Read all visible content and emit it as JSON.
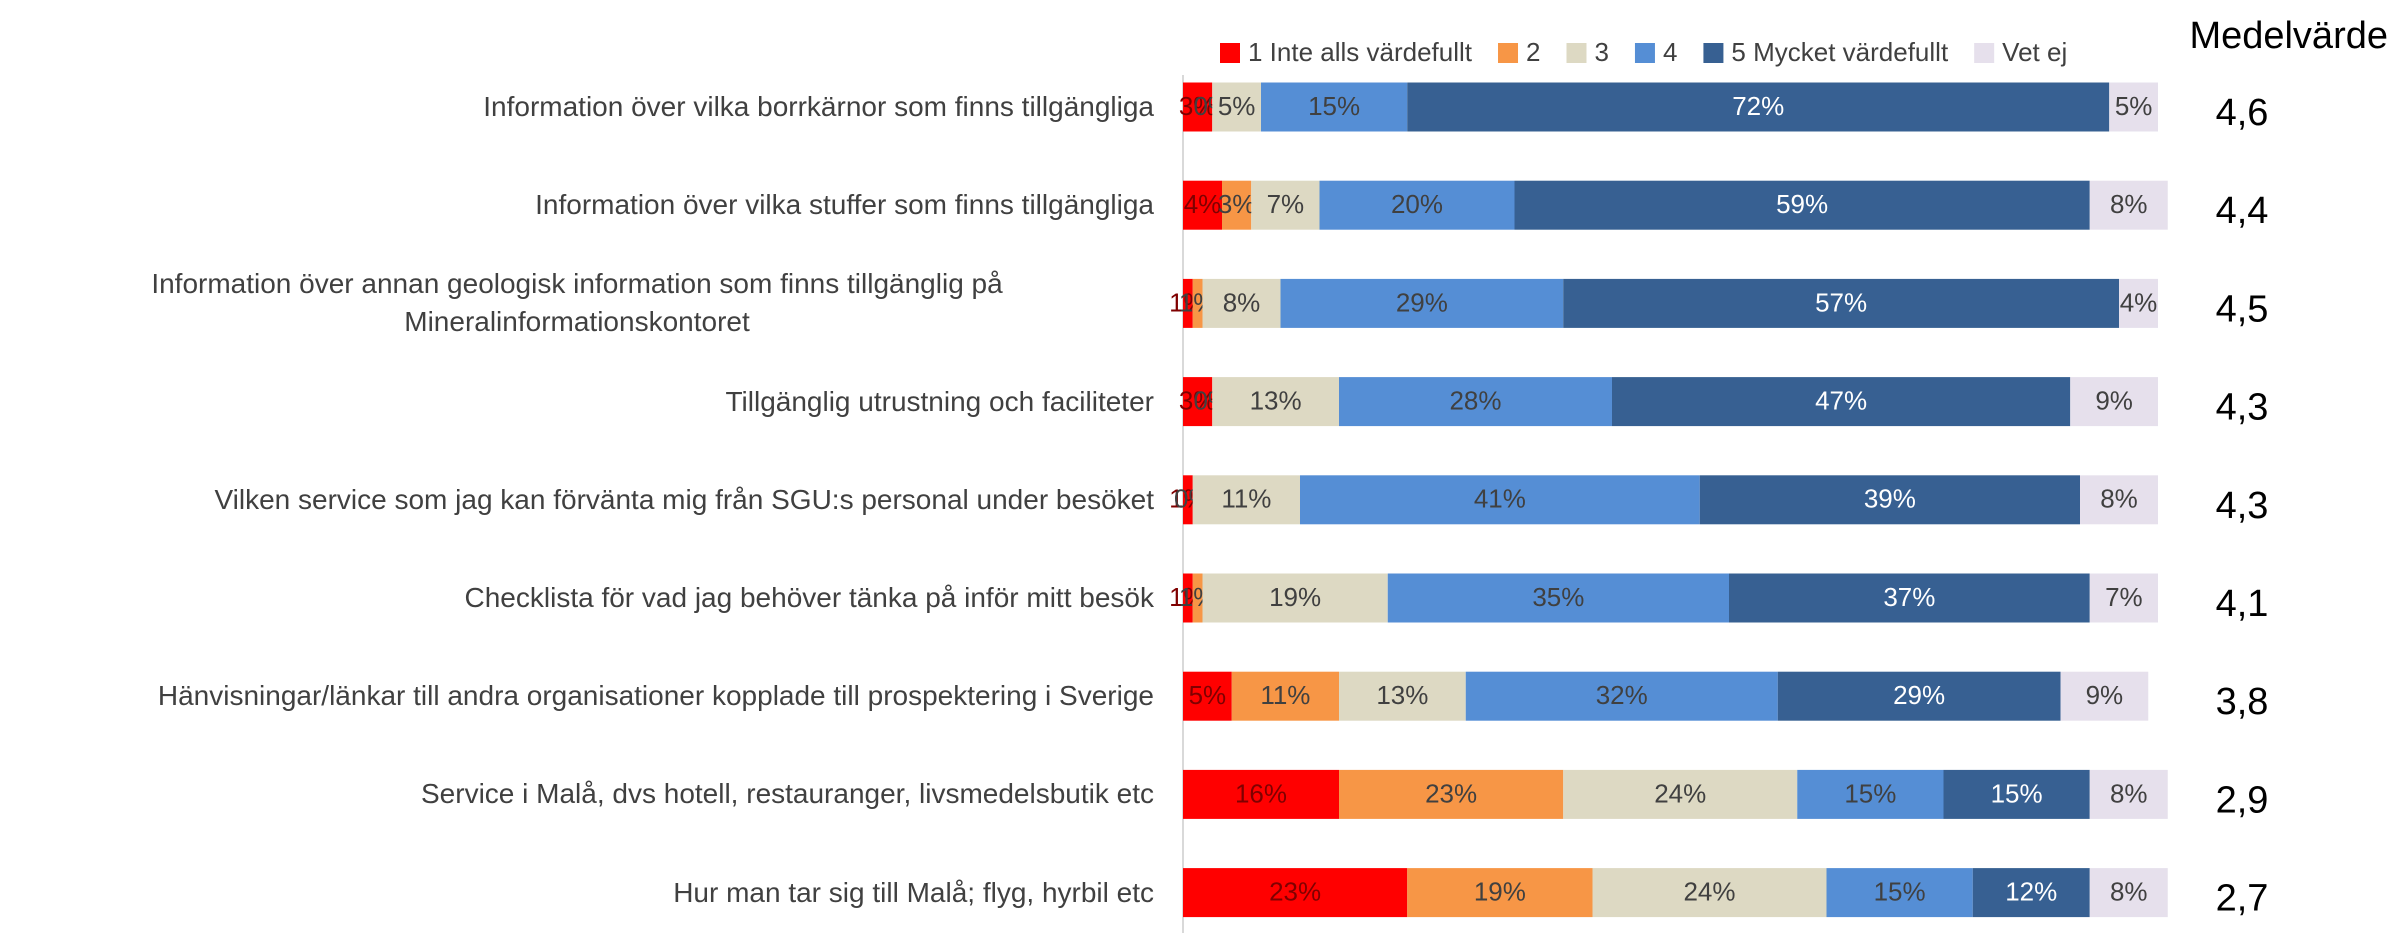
{
  "chart_data": {
    "type": "stacked_bar_horizontal",
    "categories": [
      "Information över vilka borrkärnor som finns tillgängliga",
      "Information över vilka stuffer som finns tillgängliga",
      "Information över annan geologisk information som finns tillgänglig på Mineralinformationskontoret",
      "Tillgänglig utrustning och faciliteter",
      "Vilken service som jag kan förvänta mig från SGU:s personal under besöket",
      "Checklista för vad jag behöver tänka på inför mitt besök",
      "Hänvisningar/länkar till andra organisationer kopplade till prospektering i Sverige",
      "Service i Malå, dvs hotell, restauranger,  livsmedelsbutik etc",
      "Hur man tar sig till Malå; flyg, hyrbil etc"
    ],
    "series": [
      {
        "name": "1 Inte alls värdefullt",
        "color": "#ff0000",
        "values": [
          3,
          4,
          1,
          3,
          1,
          1,
          5,
          16,
          23
        ],
        "value_labels": [
          "3%",
          "4%",
          "1%",
          "3%",
          "1%",
          "1%",
          "5%",
          "16%",
          "23%"
        ]
      },
      {
        "name": "2",
        "color": "#f79646",
        "values": [
          0,
          3,
          1,
          0,
          0,
          1,
          11,
          23,
          19
        ],
        "value_labels": [
          "0%",
          "3%",
          "1%",
          "0%",
          "0%",
          "1%",
          "11%",
          "23%",
          "19%"
        ]
      },
      {
        "name": "3",
        "color": "#ddd9c3",
        "values": [
          5,
          7,
          8,
          13,
          11,
          19,
          13,
          24,
          24
        ],
        "value_labels": [
          "5%",
          "7%",
          "8%",
          "13%",
          "11%",
          "19%",
          "13%",
          "24%",
          "24%"
        ]
      },
      {
        "name": "4",
        "color": "#558ed5",
        "values": [
          15,
          20,
          29,
          28,
          41,
          35,
          32,
          15,
          15
        ],
        "value_labels": [
          "15%",
          "20%",
          "29%",
          "28%",
          "41%",
          "35%",
          "32%",
          "15%",
          "15%"
        ]
      },
      {
        "name": "5 Mycket värdefullt",
        "color": "#376092",
        "values": [
          72,
          59,
          57,
          47,
          39,
          37,
          29,
          15,
          12
        ],
        "value_labels": [
          "72%",
          "59%",
          "57%",
          "47%",
          "39%",
          "37%",
          "29%",
          "15%",
          "12%"
        ]
      },
      {
        "name": "Vet ej",
        "color": "#e6e0ec",
        "values": [
          5,
          8,
          4,
          9,
          8,
          7,
          9,
          8,
          8
        ],
        "value_labels": [
          "5%",
          "8%",
          "4%",
          "9%",
          "8%",
          "7%",
          "9%",
          "8%",
          "8%"
        ]
      }
    ],
    "means": {
      "title": "Medelvärde",
      "values": [
        4.6,
        4.4,
        4.5,
        4.3,
        4.3,
        4.1,
        3.8,
        2.9,
        2.7
      ],
      "value_labels": [
        "4,6",
        "4,4",
        "4,5",
        "4,3",
        "4,3",
        "4,1",
        "3,8",
        "2,9",
        "2,7"
      ]
    }
  }
}
